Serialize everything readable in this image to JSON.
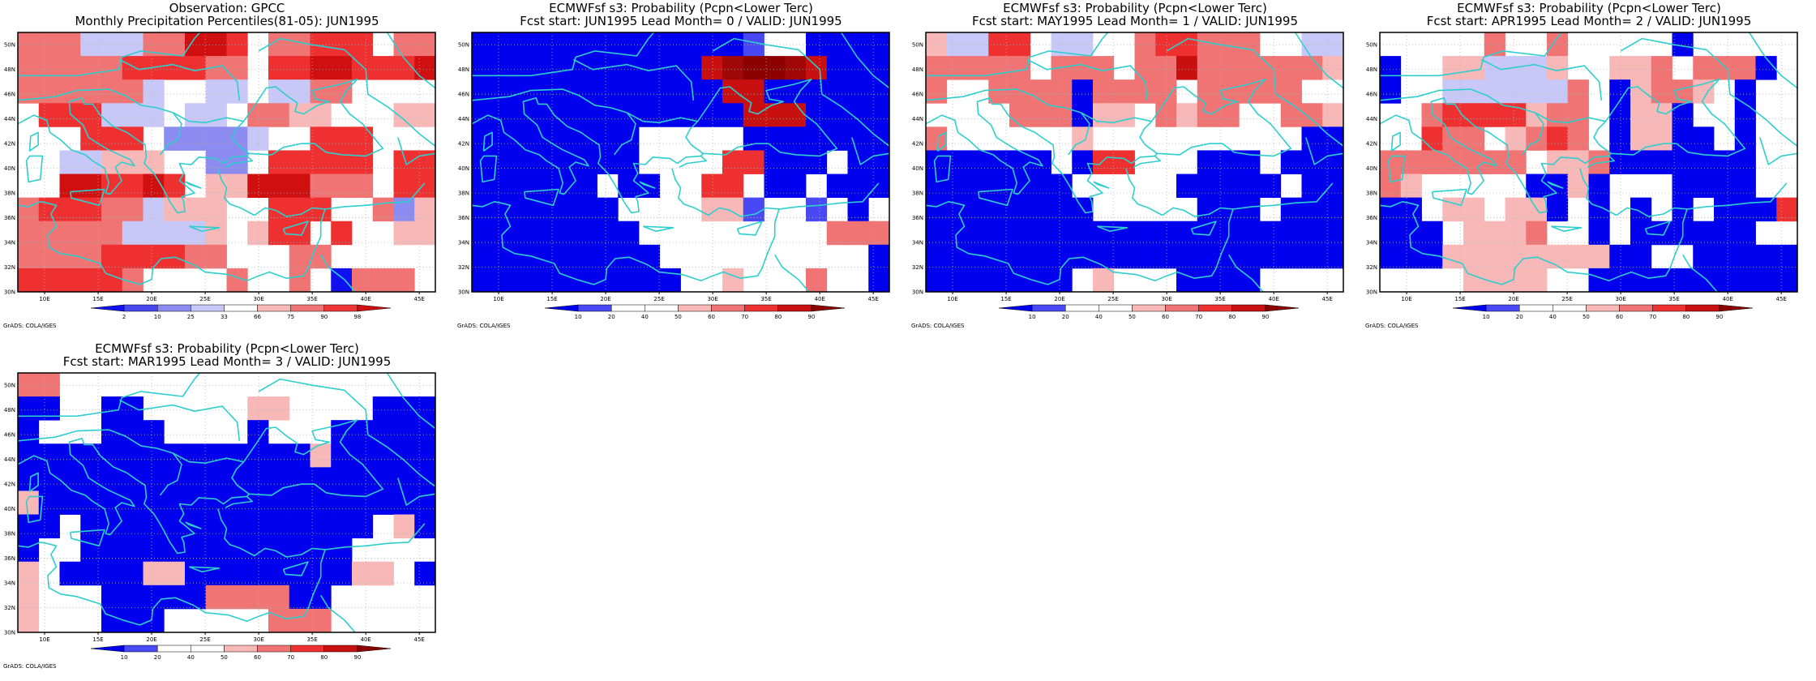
{
  "common": {
    "lat_labels": [
      "30N",
      "32N",
      "34N",
      "36N",
      "38N",
      "40N",
      "42N",
      "44N",
      "46N",
      "48N",
      "50N"
    ],
    "lon_labels": [
      "10E",
      "15E",
      "20E",
      "25E",
      "30E",
      "35E",
      "40E",
      "45E"
    ],
    "credit": "GrADS: COLA/IGES",
    "coast_color": "#2ecece"
  },
  "panels": [
    {
      "title1": "Observation: GPCC",
      "title2": "Monthly Precipitation Percentiles(81-05): JUN1995",
      "legend_labels": [
        "2",
        "10",
        "25",
        "33",
        "66",
        "75",
        "90",
        "98"
      ],
      "legend_colors": [
        "#1010f0",
        "#4848f0",
        "#8c8cf0",
        "#c8c8f8",
        "#ffffff",
        "#f8b8b8",
        "#f07474",
        "#ee3434",
        "#d01010"
      ],
      "grid": [
        "GGGFFFGGIIH.GGHHH.GG",
        "GGGGGHHHHGG.HHIIHHHI",
        "GGGGGGF..FF.FFGG....",
        ".HHHFFF.FF.GGEE...EE",
        "...HHH.DDDDF..HHH...",
        "..FFEEE..DD.HHHHH.HH",
        "..IIHHIH.EEIIIGGG.HH",
        "GHHHGGFEEE..HHH..GDE",
        "GGGGGFFFFE.EHH.H..EE",
        "GGGGHHHHGG...GG.....",
        "HHHHHG....G..G.CGGG."
      ]
    },
    {
      "title1": "ECMWFsf s3: Probability (Pcpn<Lower Terc)",
      "title2": "Fcst start: JUN1995  Lead Month= 0 / VALID: JUN1995",
      "legend_labels": [
        "10",
        "20",
        "40",
        "50",
        "60",
        "70",
        "80",
        "90"
      ],
      "legend_colors": [
        "#0000ee",
        "#4848f4",
        "#ffffff",
        "#ffffff",
        "#f8b8b8",
        "#f07474",
        "#ee3030",
        "#c81010",
        "#8c0000"
      ],
      "grid": [
        "AAAAAAAAAAAAAB..AAAA",
        "AAAAAAAAAAAJKLLKJAAA",
        "AAAAAAAAAAAAJJAAAAAA",
        "AAAAAAAAAAAAAJJJAAAA",
        "AAAAAAAA.....AAAAAAA",
        "AAAAAAAA....HHAAA.AA",
        "AAAAAA.AA..HH.AA.AAA",
        "AAAAAAA....EEB..B.A.",
        "AAAAAAAA.........GGG",
        "AAAAAAAAA..........A",
        "AAAAAAAAAA..E...G..A"
      ]
    },
    {
      "title1": "ECMWFsf s3: Probability (Pcpn<Lower Terc)",
      "title2": "Fcst start: MAY1995  Lead Month= 1 / VALID: JUN1995",
      "legend_labels": [
        "10",
        "20",
        "40",
        "50",
        "60",
        "70",
        "80",
        "90"
      ],
      "legend_colors": [
        "#0000ee",
        "#4848f4",
        "#ffffff",
        "#ffffff",
        "#f8b8b8",
        "#f07474",
        "#ee3030",
        "#c81010",
        "#8c0000"
      ],
      "grid": [
        "EFFHH.FF..GHHGGG..FF",
        "GGGGG.GGG.GGJGGGGGGE",
        "G..GGGGAGGGG.GGGGG..",
        "....GGGAEE.GEGG..GGE",
        "G......E..........AA",
        "AAAAAA.AHH...AAA.AAA",
        "AAAAAAA.....AAAAA.AA",
        "AAAAAAAA.....AAA.AAA",
        "AAAAAAAAAAAAAAAAAAAA",
        "AAAAAAAAAAAAAAAAAAAA",
        "AAAAAAA.E...AAAA...."
      ]
    },
    {
      "title1": "ECMWFsf s3: Probability (Pcpn<Lower Terc)",
      "title2": "Fcst start: APR1995  Lead Month= 2 / VALID: JUN1995",
      "legend_labels": [
        "10",
        "20",
        "40",
        "50",
        "60",
        "70",
        "80",
        "90"
      ],
      "legend_colors": [
        "#0000ee",
        "#4848f4",
        "#ffffff",
        "#ffffff",
        "#f8b8b8",
        "#f07474",
        "#ee3030",
        "#c81010",
        "#8c0000"
      ],
      "grid": [
        ".....G..G.....A.....",
        "A..EEFFFE..EEG.GGGA.",
        "A..FFFFFFG.AEGGE.A..",
        "..GHHHHEGG.AEEA..A..",
        "..HGG.EGHG.AEEAA.A..",
        "GGGGGGG.EEGAAAAAAA..",
        "GE.....AAEA...AAAA..",
        "AA.EE.EEA.A.A.A.AAAH",
        "AAA.EEEG..A.AAAAAA..",
        "AAAEEEEEEEEAA..AAAAA",
        "....EEEE..AAAAAAAAAA"
      ]
    },
    {
      "title1": "ECMWFsf s3: Probability (Pcpn<Lower Terc)",
      "title2": "Fcst start: MAR1995  Lead Month= 3 / VALID: JUN1995",
      "legend_labels": [
        "10",
        "20",
        "40",
        "50",
        "60",
        "70",
        "80",
        "90"
      ],
      "legend_colors": [
        "#0000ee",
        "#4848f4",
        "#ffffff",
        "#ffffff",
        "#f8b8b8",
        "#f07474",
        "#ee3030",
        "#c81010",
        "#8c0000"
      ],
      "grid": [
        "GG..................",
        "AA..AA.....EE....AAA",
        "A...AAA....A...AAAAA",
        "AAAAAAAAAAAAAAEAAAAA",
        "AAAAAAAAAAAAAAAAAAAA",
        "EAAAAAAAAAAAAAAAAAAA",
        "AA.AAAAAAAAAAAAAA.EA",
        "A..AAAAAAAAAAAAA....",
        "E.AAAAEEAAAAAAAAEE.A",
        "E...AAAAAGGGGAA.....",
        "E...AAA.....GGG....."
      ]
    }
  ]
}
